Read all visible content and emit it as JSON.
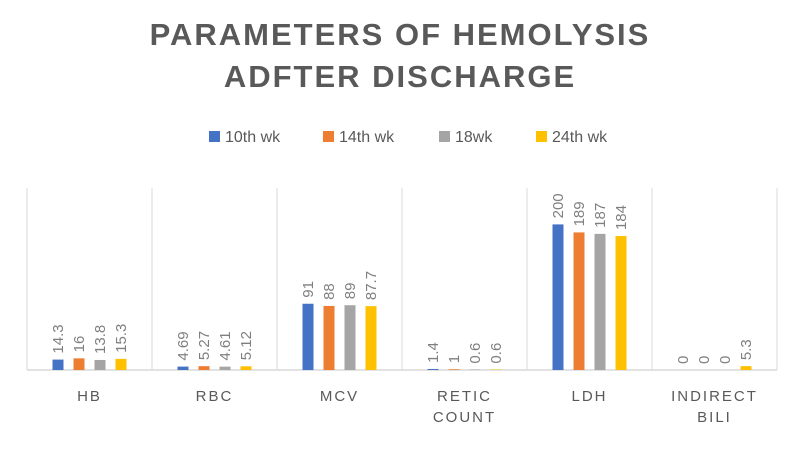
{
  "chart_data": {
    "type": "bar",
    "title_lines": [
      "PARAMETERS OF HEMOLYSIS",
      "ADFTER DISCHARGE"
    ],
    "categories": [
      [
        "HB"
      ],
      [
        "RBC"
      ],
      [
        "MCV"
      ],
      [
        "RETIC",
        "COUNT"
      ],
      [
        "LDH"
      ],
      [
        "INDIRECT",
        "BILI"
      ]
    ],
    "series": [
      {
        "name": "10th wk",
        "color": "#4472C4",
        "values": [
          14.3,
          4.69,
          91,
          1.4,
          200,
          0
        ]
      },
      {
        "name": "14th wk",
        "color": "#ED7D31",
        "values": [
          16,
          5.27,
          88,
          1,
          189,
          0
        ]
      },
      {
        "name": "18wk",
        "color": "#A5A5A5",
        "values": [
          13.8,
          4.61,
          89,
          0.6,
          187,
          0
        ]
      },
      {
        "name": "24th wk",
        "color": "#FFC000",
        "values": [
          15.3,
          5.12,
          87.7,
          0.6,
          184,
          5.3
        ]
      }
    ],
    "xlabel": "",
    "ylabel": "",
    "ylim": [
      0,
      250
    ],
    "grid": false,
    "legend": "top"
  }
}
